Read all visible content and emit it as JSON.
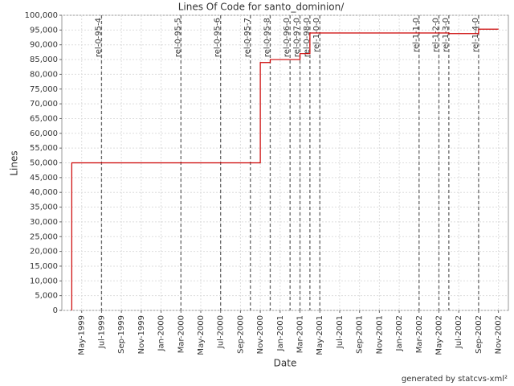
{
  "chart_data": {
    "type": "line",
    "step": true,
    "title": "Lines Of Code for santo_dominion/",
    "xlabel": "Date",
    "ylabel": "Lines",
    "footer": "generated by statcvs-xml²",
    "x": [
      "1999-04",
      "1999-04",
      "2000-11",
      "2000-12",
      "2001-03",
      "2001-04",
      "2002-06",
      "2002-09",
      "2002-11"
    ],
    "series": [
      {
        "name": "Lines",
        "color": "#cc0000",
        "values": [
          0,
          50000,
          84000,
          85000,
          87000,
          94000,
          93800,
          95300,
          95300
        ]
      }
    ],
    "xlim": [
      "1999-03",
      "2002-12"
    ],
    "xticks": [
      {
        "value": "1999-05",
        "label": "May-1999"
      },
      {
        "value": "1999-07",
        "label": "Jul-1999"
      },
      {
        "value": "1999-09",
        "label": "Sep-1999"
      },
      {
        "value": "1999-11",
        "label": "Nov-1999"
      },
      {
        "value": "2000-01",
        "label": "Jan-2000"
      },
      {
        "value": "2000-03",
        "label": "Mar-2000"
      },
      {
        "value": "2000-05",
        "label": "May-2000"
      },
      {
        "value": "2000-07",
        "label": "Jul-2000"
      },
      {
        "value": "2000-09",
        "label": "Sep-2000"
      },
      {
        "value": "2000-11",
        "label": "Nov-2000"
      },
      {
        "value": "2001-01",
        "label": "Jan-2001"
      },
      {
        "value": "2001-03",
        "label": "Mar-2001"
      },
      {
        "value": "2001-05",
        "label": "May-2001"
      },
      {
        "value": "2001-07",
        "label": "Jul-2001"
      },
      {
        "value": "2001-09",
        "label": "Sep-2001"
      },
      {
        "value": "2001-11",
        "label": "Nov-2001"
      },
      {
        "value": "2002-01",
        "label": "Jan-2002"
      },
      {
        "value": "2002-03",
        "label": "Mar-2002"
      },
      {
        "value": "2002-05",
        "label": "May-2002"
      },
      {
        "value": "2002-07",
        "label": "Jul-2002"
      },
      {
        "value": "2002-09",
        "label": "Sep-2002"
      },
      {
        "value": "2002-11",
        "label": "Nov-2002"
      }
    ],
    "ylim": [
      0,
      100000
    ],
    "yticks": [
      0,
      {
        "value": 5000,
        "label": "5,000"
      },
      {
        "value": 10000,
        "label": "10,000"
      },
      {
        "value": 15000,
        "label": "15,000"
      },
      {
        "value": 20000,
        "label": "20,000"
      },
      {
        "value": 25000,
        "label": "25,000"
      },
      {
        "value": 30000,
        "label": "30,000"
      },
      {
        "value": 35000,
        "label": "35,000"
      },
      {
        "value": 40000,
        "label": "40,000"
      },
      {
        "value": 45000,
        "label": "45,000"
      },
      {
        "value": 50000,
        "label": "50,000"
      },
      {
        "value": 55000,
        "label": "55,000"
      },
      {
        "value": 60000,
        "label": "60,000"
      },
      {
        "value": 65000,
        "label": "65,000"
      },
      {
        "value": 70000,
        "label": "70,000"
      },
      {
        "value": 75000,
        "label": "75,000"
      },
      {
        "value": 80000,
        "label": "80,000"
      },
      {
        "value": 85000,
        "label": "85,000"
      },
      {
        "value": 90000,
        "label": "90,000"
      },
      {
        "value": 95000,
        "label": "95,000"
      },
      {
        "value": 100000,
        "label": "100,000"
      }
    ],
    "grid": true,
    "markers": [
      {
        "label": "rel-0-95-4",
        "x": "1999-07"
      },
      {
        "label": "rel-0-95-5",
        "x": "2000-03"
      },
      {
        "label": "rel-0-95-6",
        "x": "2000-07"
      },
      {
        "label": "rel-0-95-7",
        "x": "2000-10"
      },
      {
        "label": "rel-0-95-8",
        "x": "2000-12"
      },
      {
        "label": "rel-0-96-0",
        "x": "2001-02"
      },
      {
        "label": "rel-0-97-0",
        "x": "2001-03"
      },
      {
        "label": "rel-0-98-0",
        "x": "2001-04"
      },
      {
        "label": "rel-1-0-0",
        "x": "2001-05"
      },
      {
        "label": "rel-1-1-0",
        "x": "2002-03"
      },
      {
        "label": "rel-1-2-0",
        "x": "2002-05"
      },
      {
        "label": "rel-1-3-0",
        "x": "2002-06"
      },
      {
        "label": "rel-1-4-0",
        "x": "2002-09"
      }
    ]
  }
}
